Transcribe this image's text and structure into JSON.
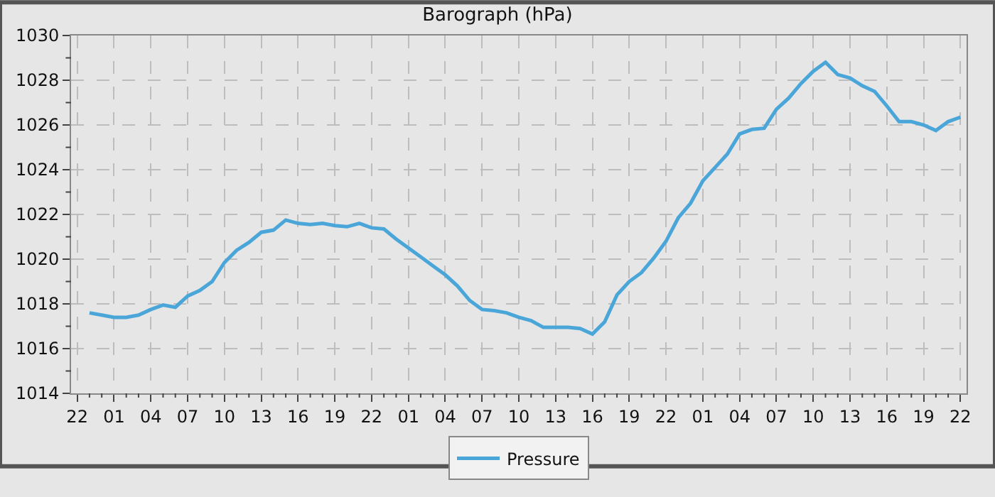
{
  "chart_data": {
    "type": "line",
    "title": "Barograph (hPa)",
    "categories": [
      "22",
      null,
      null,
      "01",
      null,
      null,
      "04",
      null,
      null,
      "07",
      null,
      null,
      "10",
      null,
      null,
      "13",
      null,
      null,
      "16",
      null,
      null,
      "19",
      null,
      null,
      "22",
      null,
      null,
      "01",
      null,
      null,
      "04",
      null,
      null,
      "07",
      null,
      null,
      "10",
      null,
      null,
      "13",
      null,
      null,
      "16",
      null,
      null,
      "19",
      null,
      null,
      "22",
      null,
      null,
      "01",
      null,
      null,
      "04",
      null,
      null,
      "07",
      null,
      null,
      "10",
      null,
      null,
      "13",
      null,
      null,
      "16",
      null,
      null,
      "19",
      null,
      null,
      "22"
    ],
    "series": [
      {
        "name": "Pressure",
        "color": "#4aa6d8",
        "values": [
          null,
          1017.6,
          1017.5,
          1017.4,
          1017.4,
          1017.5,
          1017.75,
          1017.95,
          1017.85,
          1018.35,
          1018.6,
          1019.0,
          1019.85,
          1020.4,
          1020.75,
          1021.2,
          1021.3,
          1021.75,
          1021.6,
          1021.55,
          1021.6,
          1021.5,
          1021.45,
          1021.6,
          1021.4,
          1021.35,
          1020.9,
          1020.5,
          1020.1,
          1019.7,
          1019.3,
          1018.8,
          1018.15,
          1017.75,
          1017.7,
          1017.6,
          1017.4,
          1017.25,
          1016.95,
          1016.95,
          1016.95,
          1016.9,
          1016.65,
          1017.2,
          1018.4,
          1019.0,
          1019.4,
          1020.05,
          1020.8,
          1021.85,
          1022.5,
          1023.5,
          1024.1,
          1024.7,
          1025.6,
          1025.8,
          1025.85,
          1026.7,
          1027.2,
          1027.85,
          1028.4,
          1028.8,
          1028.25,
          1028.1,
          1027.75,
          1027.5,
          1026.85,
          1026.15,
          1026.15,
          1026.0,
          1025.75,
          1026.15,
          1026.35
        ]
      }
    ],
    "ylim": [
      1014,
      1030
    ],
    "yticks": [
      1014,
      {
        "value": 1015,
        "label": null
      },
      1016,
      {
        "value": 1017,
        "label": null
      },
      1018,
      {
        "value": 1019,
        "label": null
      },
      1020,
      {
        "value": 1021,
        "label": null
      },
      1022,
      {
        "value": 1023,
        "label": null
      },
      1024,
      {
        "value": 1025,
        "label": null
      },
      1026,
      {
        "value": 1027,
        "label": null
      },
      1028,
      {
        "value": 1029,
        "label": null
      },
      1030
    ],
    "grid": true,
    "legend": "bottom",
    "marker": "none",
    "line_style": "solid"
  }
}
